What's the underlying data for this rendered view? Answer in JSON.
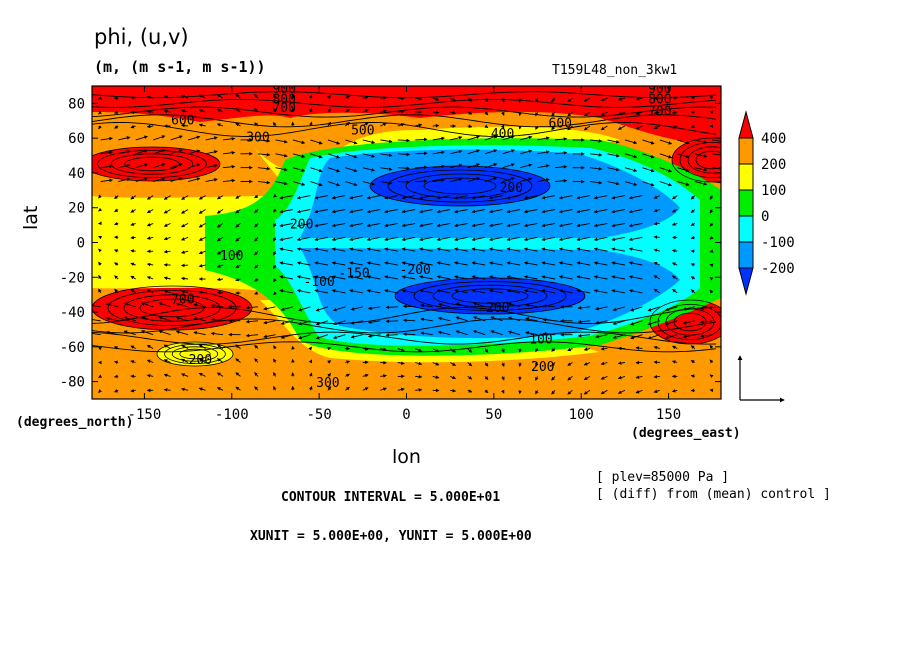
{
  "header": {
    "title": "phi, (u,v)",
    "units": "(m, (m s-1, m s-1))",
    "run": "T159L48_non_3kw1"
  },
  "footer": {
    "contour_interval": "CONTOUR INTERVAL = 5.000E+01",
    "xyunit": "XUNIT = 5.000E+00, YUNIT = 5.000E+00",
    "plev": "[ plev=85000 Pa ]",
    "diff": "[ (diff) from (mean) control ]"
  },
  "chart_data": {
    "type": "heatmap",
    "title": "phi, (u,v)",
    "xlabel": "lon",
    "ylabel": "lat",
    "xunit_label": "(degrees_east)",
    "yunit_label": "(degrees_north)",
    "xlim": [
      -180,
      180
    ],
    "ylim": [
      -90,
      90
    ],
    "xticks": [
      -150,
      -100,
      -50,
      0,
      50,
      100,
      150
    ],
    "yticks": [
      80,
      60,
      40,
      20,
      0,
      -20,
      -40,
      -60,
      -80
    ],
    "colorbar": {
      "labels": [
        "400",
        "200",
        "100",
        "0",
        "-100",
        "-200"
      ],
      "colors": [
        "#ff0000",
        "#ff9900",
        "#ffff00",
        "#00ee00",
        "#00ffff",
        "#0099ff",
        "#0033ff"
      ]
    },
    "contour_labels": [
      {
        "text": "900",
        "lon": -70,
        "lat": 86
      },
      {
        "text": "800",
        "lon": -70,
        "lat": 80
      },
      {
        "text": "700",
        "lon": -70,
        "lat": 75
      },
      {
        "text": "900",
        "lon": 145,
        "lat": 86
      },
      {
        "text": "800",
        "lon": 145,
        "lat": 80
      },
      {
        "text": "700",
        "lon": 145,
        "lat": 73
      },
      {
        "text": "600",
        "lon": -128,
        "lat": 68
      },
      {
        "text": "300",
        "lon": -85,
        "lat": 58
      },
      {
        "text": "500",
        "lon": -25,
        "lat": 62
      },
      {
        "text": "400",
        "lon": 55,
        "lat": 60
      },
      {
        "text": "600",
        "lon": 88,
        "lat": 66
      },
      {
        "text": "200",
        "lon": -60,
        "lat": 8
      },
      {
        "text": "100",
        "lon": -100,
        "lat": -10
      },
      {
        "text": "-100",
        "lon": -50,
        "lat": -25
      },
      {
        "text": "-150",
        "lon": -30,
        "lat": -20
      },
      {
        "text": "-200",
        "lon": 5,
        "lat": -18
      },
      {
        "text": "200",
        "lon": 60,
        "lat": 29
      },
      {
        "text": "-200",
        "lon": 50,
        "lat": -40
      },
      {
        "text": "100",
        "lon": 77,
        "lat": -58
      },
      {
        "text": "700",
        "lon": -128,
        "lat": -35
      },
      {
        "text": "200",
        "lon": -118,
        "lat": -70
      },
      {
        "text": "300",
        "lon": -45,
        "lat": -83
      },
      {
        "text": "200",
        "lon": 78,
        "lat": -74
      }
    ]
  }
}
